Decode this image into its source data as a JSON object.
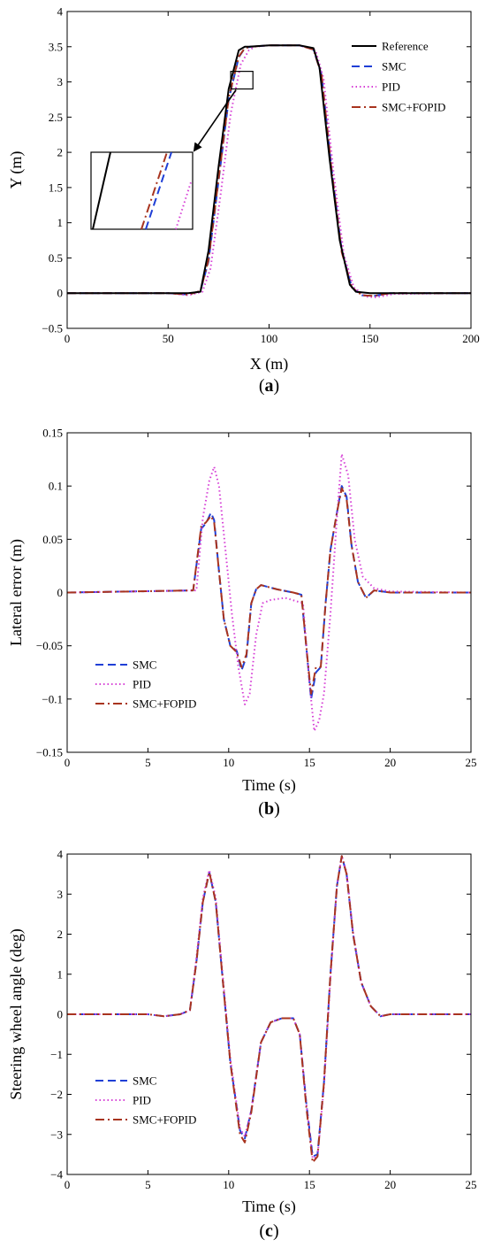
{
  "chart_data": [
    {
      "type": "line",
      "panel_label": "a",
      "xlabel": "X (m)",
      "ylabel": "Y (m)",
      "xlim": [
        0,
        200
      ],
      "ylim": [
        -0.5,
        4
      ],
      "xticks": [
        0,
        50,
        100,
        150,
        200
      ],
      "yticks": [
        -0.5,
        0,
        0.5,
        1,
        1.5,
        2,
        2.5,
        3,
        3.5,
        4
      ],
      "ytick_labels": [
        "−0.5",
        "0",
        "0.5",
        "1",
        "1.5",
        "2",
        "2.5",
        "3",
        "3.5",
        "4"
      ],
      "legend_position": "top-right",
      "inset": {
        "box_x": [
          81,
          92
        ],
        "box_y": [
          2.9,
          3.15
        ],
        "shows": "zoom of rising edge near Y≈3"
      },
      "series": [
        {
          "name": "Reference",
          "color": "#000000",
          "style": "solid",
          "x": [
            0,
            60,
            66,
            70,
            75,
            80,
            85,
            88,
            90,
            100,
            115,
            122,
            125,
            130,
            135,
            140,
            143,
            150,
            160,
            200
          ],
          "y": [
            0,
            0,
            0.02,
            0.6,
            1.8,
            2.9,
            3.45,
            3.5,
            3.5,
            3.52,
            3.52,
            3.48,
            3.2,
            1.9,
            0.75,
            0.12,
            0.02,
            0,
            0,
            0
          ]
        },
        {
          "name": "SMC",
          "color": "#1f3fd6",
          "style": "dashed",
          "x": [
            0,
            50,
            60,
            66,
            70,
            75,
            80,
            85,
            88,
            91,
            100,
            115,
            122,
            126,
            131,
            136,
            141,
            146,
            152,
            160,
            200
          ],
          "y": [
            0,
            0,
            -0.02,
            0.03,
            0.45,
            1.6,
            2.75,
            3.35,
            3.48,
            3.5,
            3.52,
            3.52,
            3.46,
            3.1,
            1.75,
            0.6,
            0.08,
            -0.03,
            -0.04,
            0,
            0
          ]
        },
        {
          "name": "PID",
          "color": "#d63fd6",
          "style": "dotted",
          "x": [
            0,
            50,
            60,
            67,
            71,
            76,
            81,
            86,
            90,
            93,
            100,
            115,
            123,
            127,
            132,
            137,
            142,
            148,
            153,
            162,
            200
          ],
          "y": [
            0,
            0,
            -0.03,
            0.02,
            0.35,
            1.4,
            2.55,
            3.25,
            3.45,
            3.5,
            3.52,
            3.52,
            3.45,
            3.05,
            1.7,
            0.55,
            0.08,
            -0.05,
            -0.06,
            -0.01,
            0
          ]
        },
        {
          "name": "SMC+FOPID",
          "color": "#a8341f",
          "style": "dashdot",
          "x": [
            0,
            50,
            60,
            66,
            70,
            75,
            80,
            85,
            88,
            91,
            100,
            115,
            122,
            126,
            131,
            136,
            141,
            146,
            152,
            160,
            200
          ],
          "y": [
            0,
            0,
            -0.02,
            0.03,
            0.47,
            1.62,
            2.77,
            3.36,
            3.48,
            3.5,
            3.52,
            3.52,
            3.46,
            3.1,
            1.74,
            0.58,
            0.08,
            -0.03,
            -0.04,
            0,
            0
          ]
        }
      ]
    },
    {
      "type": "line",
      "panel_label": "b",
      "xlabel": "Time (s)",
      "ylabel": "Lateral error (m)",
      "xlim": [
        0,
        25
      ],
      "ylim": [
        -0.15,
        0.15
      ],
      "xticks": [
        0,
        5,
        10,
        15,
        20,
        25
      ],
      "yticks": [
        -0.15,
        -0.1,
        -0.05,
        0,
        0.05,
        0.1,
        0.15
      ],
      "ytick_labels": [
        "−0.15",
        "−0.1",
        "−0.05",
        "0",
        "0.05",
        "0.1",
        "0.15"
      ],
      "legend_position": "lower-left",
      "series": [
        {
          "name": "SMC",
          "color": "#1f3fd6",
          "style": "dashed",
          "x": [
            0,
            7.8,
            8.3,
            8.6,
            8.9,
            9.1,
            9.4,
            9.7,
            10.1,
            10.5,
            10.8,
            11.1,
            11.4,
            11.7,
            12,
            12.5,
            13,
            14,
            14.5,
            14.8,
            15.1,
            15.4,
            15.7,
            16,
            16.3,
            16.7,
            17,
            17.3,
            17.6,
            18,
            18.5,
            19,
            20,
            25
          ],
          "y": [
            0,
            0.002,
            0.06,
            0.065,
            0.075,
            0.068,
            0.02,
            -0.025,
            -0.05,
            -0.055,
            -0.073,
            -0.06,
            -0.01,
            0.003,
            0.007,
            0.005,
            0.003,
            0,
            -0.002,
            -0.05,
            -0.1,
            -0.075,
            -0.07,
            -0.01,
            0.04,
            0.075,
            0.1,
            0.09,
            0.045,
            0.01,
            -0.005,
            0.002,
            0,
            0
          ]
        },
        {
          "name": "PID",
          "color": "#d63fd6",
          "style": "dotted",
          "x": [
            0,
            8,
            8.4,
            8.8,
            9.1,
            9.4,
            9.8,
            10.2,
            10.6,
            11,
            11.3,
            11.7,
            12.1,
            12.6,
            13.5,
            14.6,
            15,
            15.3,
            15.6,
            15.9,
            16.3,
            16.7,
            17,
            17.4,
            17.8,
            18.3,
            19,
            20,
            25
          ],
          "y": [
            0,
            0.002,
            0.07,
            0.105,
            0.118,
            0.1,
            0.04,
            -0.02,
            -0.07,
            -0.105,
            -0.095,
            -0.04,
            -0.01,
            -0.007,
            -0.005,
            -0.01,
            -0.085,
            -0.13,
            -0.12,
            -0.095,
            -0.02,
            0.07,
            0.13,
            0.11,
            0.05,
            0.015,
            0.004,
            0.001,
            0
          ]
        },
        {
          "name": "SMC+FOPID",
          "color": "#a8341f",
          "style": "dashdot",
          "x": [
            0,
            7.8,
            8.3,
            8.6,
            8.9,
            9.1,
            9.4,
            9.7,
            10.1,
            10.5,
            10.8,
            11.1,
            11.4,
            11.7,
            12,
            12.5,
            13,
            14,
            14.5,
            14.8,
            15.1,
            15.4,
            15.7,
            16,
            16.3,
            16.7,
            17,
            17.3,
            17.6,
            18,
            18.5,
            19,
            20,
            25
          ],
          "y": [
            0,
            0.002,
            0.062,
            0.066,
            0.072,
            0.066,
            0.02,
            -0.025,
            -0.05,
            -0.056,
            -0.07,
            -0.058,
            -0.01,
            0.003,
            0.007,
            0.005,
            0.003,
            0,
            -0.002,
            -0.05,
            -0.095,
            -0.07,
            -0.07,
            -0.01,
            0.04,
            0.075,
            0.098,
            0.088,
            0.045,
            0.01,
            -0.005,
            0.002,
            0,
            0
          ]
        }
      ]
    },
    {
      "type": "line",
      "panel_label": "c",
      "xlabel": "Time (s)",
      "ylabel": "Steering wheel angle (deg)",
      "xlim": [
        0,
        25
      ],
      "ylim": [
        -4,
        4
      ],
      "xticks": [
        0,
        5,
        10,
        15,
        20,
        25
      ],
      "yticks": [
        -4,
        -3,
        -2,
        -1,
        0,
        1,
        2,
        3,
        4
      ],
      "ytick_labels": [
        "−4",
        "−3",
        "−2",
        "−1",
        "0",
        "1",
        "2",
        "3",
        "4"
      ],
      "legend_position": "lower-left",
      "series": [
        {
          "name": "SMC",
          "color": "#1f3fd6",
          "style": "dashed",
          "x": [
            0,
            5,
            6,
            7,
            7.6,
            8,
            8.4,
            8.8,
            9.2,
            9.6,
            10.1,
            10.7,
            11,
            11.4,
            12,
            12.6,
            13.3,
            14,
            14.4,
            14.8,
            15.2,
            15.5,
            15.9,
            16.3,
            16.7,
            17,
            17.3,
            17.7,
            18.2,
            18.8,
            19.4,
            20,
            21,
            25
          ],
          "y": [
            0,
            0,
            -0.05,
            0,
            0.1,
            1.3,
            2.8,
            3.55,
            2.8,
            1,
            -1.2,
            -2.9,
            -3.1,
            -2.4,
            -0.7,
            -0.2,
            -0.1,
            -0.1,
            -0.5,
            -2.2,
            -3.55,
            -3.5,
            -1.7,
            1,
            3.2,
            3.95,
            3.5,
            2,
            0.8,
            0.2,
            -0.05,
            0,
            0,
            0
          ]
        },
        {
          "name": "PID",
          "color": "#d63fd6",
          "style": "dotted",
          "x": [
            0,
            5,
            6,
            7,
            7.6,
            8,
            8.4,
            8.8,
            9.2,
            9.6,
            10.1,
            10.7,
            11,
            11.4,
            12,
            12.6,
            13.3,
            14,
            14.4,
            14.8,
            15.2,
            15.5,
            15.9,
            16.3,
            16.7,
            17,
            17.3,
            17.7,
            18.2,
            18.8,
            19.4,
            20,
            21,
            25
          ],
          "y": [
            0,
            0,
            -0.05,
            0,
            0.1,
            1.4,
            2.9,
            3.6,
            2.9,
            1.1,
            -1.1,
            -2.85,
            -3.05,
            -2.4,
            -0.7,
            -0.2,
            -0.1,
            -0.1,
            -0.5,
            -2.2,
            -3.6,
            -3.55,
            -1.8,
            0.9,
            3.2,
            3.95,
            3.55,
            2.05,
            0.8,
            0.2,
            -0.05,
            0,
            0,
            0
          ]
        },
        {
          "name": "SMC+FOPID",
          "color": "#a8341f",
          "style": "dashdot",
          "x": [
            0,
            5,
            6,
            7,
            7.6,
            8,
            8.4,
            8.8,
            9.2,
            9.6,
            10.1,
            10.7,
            11,
            11.4,
            12,
            12.6,
            13.3,
            14,
            14.4,
            14.8,
            15.2,
            15.5,
            15.9,
            16.3,
            16.7,
            17,
            17.3,
            17.7,
            18.2,
            18.8,
            19.4,
            20,
            21,
            25
          ],
          "y": [
            0,
            0,
            -0.05,
            0,
            0.1,
            1.3,
            2.8,
            3.55,
            2.8,
            1,
            -1.2,
            -3,
            -3.2,
            -2.45,
            -0.7,
            -0.2,
            -0.1,
            -0.1,
            -0.5,
            -2.3,
            -3.7,
            -3.55,
            -1.7,
            1,
            3.2,
            3.95,
            3.5,
            2,
            0.8,
            0.2,
            -0.05,
            0,
            0,
            0
          ]
        }
      ]
    }
  ]
}
